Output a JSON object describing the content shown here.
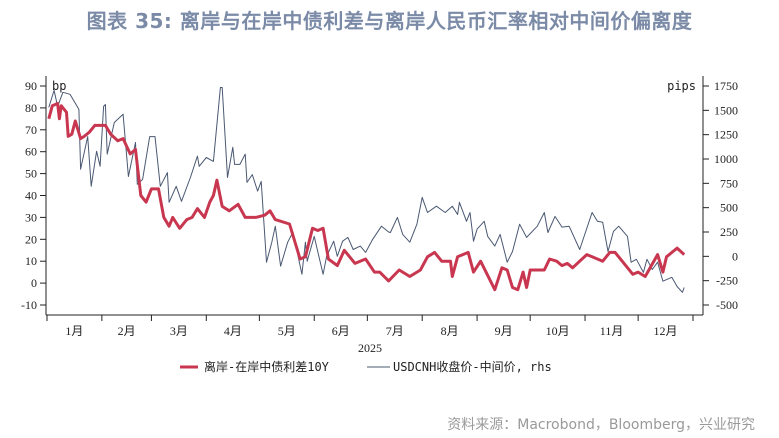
{
  "chart_data": {
    "type": "line",
    "title": "图表 35: 离岸与在岸中债利差与离岸人民币汇率相对中间价偏离度",
    "xlabel": "2025",
    "x_tick_labels": [
      "1月",
      "2月",
      "3月",
      "4月",
      "5月",
      "6月",
      "7月",
      "8月",
      "9月",
      "10月",
      "11月",
      "12月"
    ],
    "y_left": {
      "unit": "bp",
      "range": [
        -15,
        95
      ],
      "ticks": [
        -10,
        0,
        10,
        20,
        30,
        40,
        50,
        60,
        70,
        80,
        90
      ]
    },
    "y_right": {
      "unit": "pips",
      "range": [
        -600,
        1850
      ],
      "ticks": [
        -500,
        -250,
        0,
        250,
        500,
        750,
        1000,
        1250,
        1500,
        1750
      ]
    },
    "grid": false,
    "legend_placement": "bottom",
    "series": [
      {
        "name": "离岸-在岸中债利差10Y",
        "axis": "left",
        "color": "#c8374f",
        "points": [
          [
            "2025-01-02",
            75
          ],
          [
            "2025-01-04",
            81
          ],
          [
            "2025-01-07",
            82
          ],
          [
            "2025-01-08",
            75
          ],
          [
            "2025-01-09",
            81
          ],
          [
            "2025-01-12",
            78
          ],
          [
            "2025-01-13",
            67
          ],
          [
            "2025-01-15",
            68
          ],
          [
            "2025-01-17",
            74
          ],
          [
            "2025-01-20",
            66
          ],
          [
            "2025-01-22",
            67
          ],
          [
            "2025-01-25",
            69
          ],
          [
            "2025-01-28",
            72
          ],
          [
            "2025-02-03",
            72
          ],
          [
            "2025-02-06",
            68
          ],
          [
            "2025-02-10",
            65
          ],
          [
            "2025-02-13",
            66
          ],
          [
            "2025-02-17",
            59
          ],
          [
            "2025-02-20",
            61
          ],
          [
            "2025-02-23",
            40
          ],
          [
            "2025-02-26",
            37
          ],
          [
            "2025-03-01",
            43
          ],
          [
            "2025-03-05",
            43
          ],
          [
            "2025-03-08",
            30
          ],
          [
            "2025-03-11",
            26
          ],
          [
            "2025-03-13",
            30
          ],
          [
            "2025-03-17",
            25
          ],
          [
            "2025-03-21",
            29
          ],
          [
            "2025-03-24",
            30
          ],
          [
            "2025-03-27",
            34
          ],
          [
            "2025-03-31",
            30
          ],
          [
            "2025-04-03",
            37
          ],
          [
            "2025-04-05",
            40
          ],
          [
            "2025-04-07",
            47
          ],
          [
            "2025-04-10",
            35
          ],
          [
            "2025-04-14",
            33
          ],
          [
            "2025-04-19",
            36
          ],
          [
            "2025-04-23",
            30
          ],
          [
            "2025-04-29",
            30
          ],
          [
            "2025-05-04",
            31
          ],
          [
            "2025-05-07",
            33
          ],
          [
            "2025-05-10",
            29
          ],
          [
            "2025-05-18",
            27
          ],
          [
            "2025-05-24",
            11
          ],
          [
            "2025-05-27",
            12
          ],
          [
            "2025-05-31",
            25
          ],
          [
            "2025-06-03",
            24
          ],
          [
            "2025-06-06",
            25
          ],
          [
            "2025-06-09",
            11
          ],
          [
            "2025-06-14",
            8
          ],
          [
            "2025-06-18",
            15
          ],
          [
            "2025-06-24",
            9
          ],
          [
            "2025-06-30",
            11
          ],
          [
            "2025-07-05",
            5
          ],
          [
            "2025-07-08",
            5
          ],
          [
            "2025-07-13",
            1
          ],
          [
            "2025-07-19",
            6
          ],
          [
            "2025-07-25",
            3
          ],
          [
            "2025-07-31",
            6
          ],
          [
            "2025-08-04",
            12
          ],
          [
            "2025-08-08",
            14
          ],
          [
            "2025-08-12",
            10
          ],
          [
            "2025-08-17",
            10
          ],
          [
            "2025-08-18",
            3
          ],
          [
            "2025-08-21",
            12
          ],
          [
            "2025-08-27",
            14
          ],
          [
            "2025-08-30",
            5
          ],
          [
            "2025-09-03",
            10
          ],
          [
            "2025-09-11",
            -3
          ],
          [
            "2025-09-15",
            7
          ],
          [
            "2025-09-18",
            6
          ],
          [
            "2025-09-21",
            -2
          ],
          [
            "2025-09-24",
            -3
          ],
          [
            "2025-09-27",
            5
          ],
          [
            "2025-09-29",
            -2
          ],
          [
            "2025-10-01",
            6
          ],
          [
            "2025-10-09",
            6
          ],
          [
            "2025-10-12",
            11
          ],
          [
            "2025-10-16",
            10
          ],
          [
            "2025-10-19",
            8
          ],
          [
            "2025-10-22",
            9
          ],
          [
            "2025-10-25",
            7
          ],
          [
            "2025-10-29",
            10
          ],
          [
            "2025-11-02",
            13
          ],
          [
            "2025-11-05",
            12
          ],
          [
            "2025-11-11",
            10
          ],
          [
            "2025-11-15",
            14
          ],
          [
            "2025-11-18",
            14
          ],
          [
            "2025-11-22",
            10
          ],
          [
            "2025-11-28",
            4
          ],
          [
            "2025-12-01",
            5
          ],
          [
            "2025-12-05",
            3
          ],
          [
            "2025-12-12",
            13
          ],
          [
            "2025-12-15",
            5
          ],
          [
            "2025-12-17",
            12
          ],
          [
            "2025-12-23",
            16
          ],
          [
            "2025-12-27",
            13
          ]
        ]
      },
      {
        "name": "USDCNH收盘价-中间价, rhs",
        "axis": "right",
        "color": "#4a5872",
        "points": [
          [
            "2025-01-02",
            1530
          ],
          [
            "2025-01-05",
            1705
          ],
          [
            "2025-01-07",
            1540
          ],
          [
            "2025-01-10",
            1685
          ],
          [
            "2025-01-14",
            1665
          ],
          [
            "2025-01-19",
            1510
          ],
          [
            "2025-01-20",
            895
          ],
          [
            "2025-01-24",
            1230
          ],
          [
            "2025-01-26",
            720
          ],
          [
            "2025-01-29",
            1080
          ],
          [
            "2025-01-31",
            925
          ],
          [
            "2025-02-02",
            1540
          ],
          [
            "2025-02-03",
            1560
          ],
          [
            "2025-02-04",
            1050
          ],
          [
            "2025-02-08",
            1375
          ],
          [
            "2025-02-13",
            1460
          ],
          [
            "2025-02-16",
            820
          ],
          [
            "2025-02-20",
            1170
          ],
          [
            "2025-02-21",
            740
          ],
          [
            "2025-02-24",
            790
          ],
          [
            "2025-02-28",
            1230
          ],
          [
            "2025-03-03",
            1230
          ],
          [
            "2025-03-06",
            720
          ],
          [
            "2025-03-10",
            860
          ],
          [
            "2025-03-11",
            555
          ],
          [
            "2025-03-15",
            720
          ],
          [
            "2025-03-18",
            565
          ],
          [
            "2025-03-23",
            810
          ],
          [
            "2025-03-27",
            1030
          ],
          [
            "2025-03-28",
            925
          ],
          [
            "2025-04-01",
            1015
          ],
          [
            "2025-04-05",
            975
          ],
          [
            "2025-04-09",
            1735
          ],
          [
            "2025-04-10",
            1735
          ],
          [
            "2025-04-13",
            810
          ],
          [
            "2025-04-16",
            1120
          ],
          [
            "2025-04-17",
            945
          ],
          [
            "2025-04-20",
            945
          ],
          [
            "2025-04-23",
            1050
          ],
          [
            "2025-04-24",
            760
          ],
          [
            "2025-04-27",
            840
          ],
          [
            "2025-04-30",
            670
          ],
          [
            "2025-05-02",
            770
          ],
          [
            "2025-05-05",
            -60
          ],
          [
            "2025-05-08",
            145
          ],
          [
            "2025-05-10",
            310
          ],
          [
            "2025-05-13",
            -100
          ],
          [
            "2025-05-17",
            145
          ],
          [
            "2025-05-20",
            250
          ],
          [
            "2025-05-25",
            -185
          ],
          [
            "2025-05-27",
            145
          ],
          [
            "2025-05-28",
            -50
          ],
          [
            "2025-06-01",
            205
          ],
          [
            "2025-06-06",
            -185
          ],
          [
            "2025-06-08",
            0
          ],
          [
            "2025-06-12",
            155
          ],
          [
            "2025-06-14",
            0
          ],
          [
            "2025-06-17",
            155
          ],
          [
            "2025-06-20",
            195
          ],
          [
            "2025-06-23",
            70
          ],
          [
            "2025-06-27",
            105
          ],
          [
            "2025-06-30",
            40
          ],
          [
            "2025-07-04",
            175
          ],
          [
            "2025-07-09",
            310
          ],
          [
            "2025-07-13",
            250
          ],
          [
            "2025-07-14",
            245
          ],
          [
            "2025-07-18",
            400
          ],
          [
            "2025-07-21",
            225
          ],
          [
            "2025-07-25",
            145
          ],
          [
            "2025-07-29",
            330
          ],
          [
            "2025-08-01",
            605
          ],
          [
            "2025-08-04",
            450
          ],
          [
            "2025-08-09",
            515
          ],
          [
            "2025-08-14",
            450
          ],
          [
            "2025-08-18",
            515
          ],
          [
            "2025-08-21",
            430
          ],
          [
            "2025-08-22",
            555
          ],
          [
            "2025-08-26",
            360
          ],
          [
            "2025-08-28",
            450
          ],
          [
            "2025-08-30",
            155
          ],
          [
            "2025-09-01",
            280
          ],
          [
            "2025-09-05",
            360
          ],
          [
            "2025-09-07",
            205
          ],
          [
            "2025-09-11",
            105
          ],
          [
            "2025-09-14",
            225
          ],
          [
            "2025-09-18",
            -60
          ],
          [
            "2025-09-21",
            50
          ],
          [
            "2025-09-25",
            330
          ],
          [
            "2025-09-29",
            195
          ],
          [
            "2025-10-05",
            310
          ],
          [
            "2025-10-09",
            450
          ],
          [
            "2025-10-11",
            245
          ],
          [
            "2025-10-15",
            410
          ],
          [
            "2025-10-19",
            300
          ],
          [
            "2025-10-23",
            310
          ],
          [
            "2025-10-29",
            70
          ],
          [
            "2025-11-05",
            450
          ],
          [
            "2025-11-08",
            360
          ],
          [
            "2025-11-11",
            350
          ],
          [
            "2025-11-14",
            50
          ],
          [
            "2025-11-17",
            255
          ],
          [
            "2025-11-20",
            310
          ],
          [
            "2025-11-25",
            205
          ],
          [
            "2025-11-27",
            -60
          ],
          [
            "2025-11-30",
            -30
          ],
          [
            "2025-12-04",
            -165
          ],
          [
            "2025-12-06",
            -30
          ],
          [
            "2025-12-09",
            -135
          ],
          [
            "2025-12-12",
            -60
          ],
          [
            "2025-12-15",
            -255
          ],
          [
            "2025-12-20",
            -215
          ],
          [
            "2025-12-23",
            -310
          ],
          [
            "2025-12-26",
            -370
          ],
          [
            "2025-12-27",
            -320
          ]
        ]
      }
    ]
  },
  "source": "资料来源：Macrobond，Bloomberg，兴业研究"
}
